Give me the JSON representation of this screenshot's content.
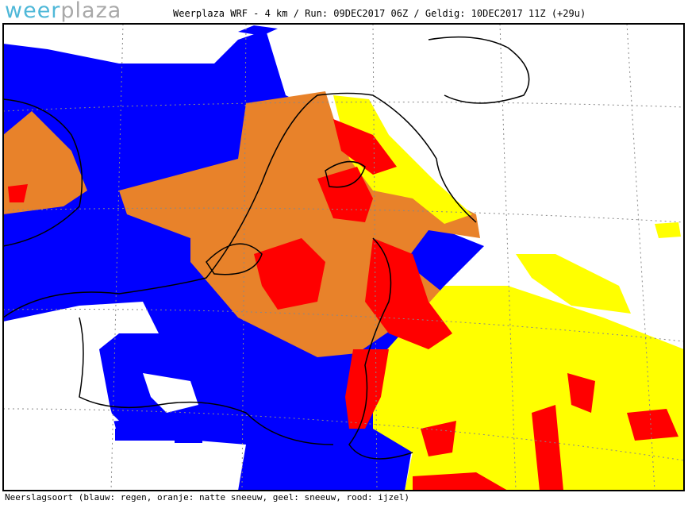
{
  "logo": {
    "part1": "weer",
    "part2": "plaza"
  },
  "header": {
    "title": "Weerplaza WRF - 4 km / Run: 09DEC2017 06Z / Geldig: 10DEC2017 11Z (+29u)"
  },
  "footer": {
    "legend": "Neerslagsoort (blauw: regen, oranje: natte sneeuw, geel: sneeuw, rood: ijzel)"
  }
}
